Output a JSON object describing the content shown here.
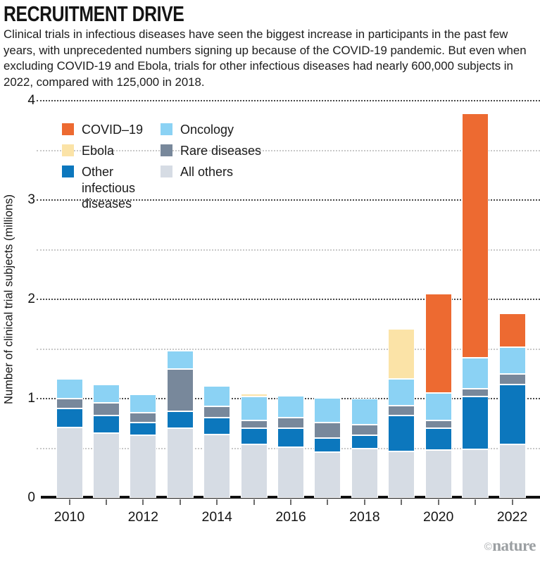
{
  "header": {
    "title": "RECRUITMENT DRIVE",
    "subtitle": "Clinical trials in infectious diseases have seen the biggest increase in participants in the past few years, with unprecedented numbers signing up because of the COVID-19 pandemic. But even when excluding COVID-19 and Ebola, trials for other infectious diseases had nearly 600,000 subjects in 2022, compared with 125,000 in 2018."
  },
  "chart_data": {
    "type": "bar",
    "stacked": true,
    "title": "RECRUITMENT DRIVE",
    "xlabel": "",
    "ylabel": "Number of clinical trial subjects (millions)",
    "ylim": [
      0,
      4
    ],
    "y_tick_labels": [
      "0",
      "1",
      "2",
      "3",
      "4"
    ],
    "grid": {
      "major": [
        1,
        2,
        3,
        4
      ],
      "minor": [
        0.5,
        1.5,
        2.5,
        3.5
      ]
    },
    "categories": [
      "2010",
      "2011",
      "2012",
      "2013",
      "2014",
      "2015",
      "2016",
      "2017",
      "2018",
      "2019",
      "2020",
      "2021",
      "2022"
    ],
    "x_tick_labels_shown": [
      "2010",
      "2012",
      "2014",
      "2016",
      "2018",
      "2020",
      "2022"
    ],
    "colors": {
      "covid": "#ED6A31",
      "ebola": "#FBE3A7",
      "other_infectious": "#0C77BD",
      "oncology": "#8BD2F4",
      "rare": "#78889B",
      "all_others": "#D6DCE4"
    },
    "series": [
      {
        "key": "all_others",
        "name": "All others",
        "values": [
          0.71,
          0.65,
          0.63,
          0.7,
          0.64,
          0.54,
          0.51,
          0.46,
          0.5,
          0.47,
          0.48,
          0.49,
          0.54
        ]
      },
      {
        "key": "other_infectious",
        "name": "Other infectious diseases",
        "values": [
          0.19,
          0.18,
          0.13,
          0.17,
          0.17,
          0.16,
          0.19,
          0.14,
          0.13,
          0.36,
          0.22,
          0.53,
          0.6
        ]
      },
      {
        "key": "rare",
        "name": "Rare diseases",
        "values": [
          0.1,
          0.13,
          0.1,
          0.43,
          0.11,
          0.08,
          0.11,
          0.16,
          0.11,
          0.1,
          0.08,
          0.08,
          0.11
        ]
      },
      {
        "key": "oncology",
        "name": "Oncology",
        "values": [
          0.2,
          0.18,
          0.18,
          0.18,
          0.21,
          0.24,
          0.22,
          0.25,
          0.26,
          0.27,
          0.28,
          0.31,
          0.27
        ]
      },
      {
        "key": "ebola",
        "name": "Ebola",
        "values": [
          0,
          0,
          0,
          0,
          0,
          0.03,
          0,
          0,
          0,
          0.5,
          0,
          0,
          0
        ]
      },
      {
        "key": "covid",
        "name": "COVID–19",
        "values": [
          0,
          0,
          0,
          0,
          0,
          0,
          0,
          0,
          0,
          0,
          1.0,
          2.46,
          0.34
        ]
      }
    ],
    "legend": {
      "position": "top-left",
      "columns": [
        {
          "items": [
            {
              "key": "covid",
              "label": "COVID–19"
            },
            {
              "key": "ebola",
              "label": "Ebola"
            },
            {
              "key": "other_infectious",
              "label": "Other infectious diseases"
            }
          ]
        },
        {
          "items": [
            {
              "key": "oncology",
              "label": "Oncology"
            },
            {
              "key": "rare",
              "label": "Rare diseases"
            },
            {
              "key": "all_others",
              "label": "All others"
            }
          ]
        }
      ]
    }
  },
  "credit": {
    "symbol": "©",
    "name": "nature"
  }
}
